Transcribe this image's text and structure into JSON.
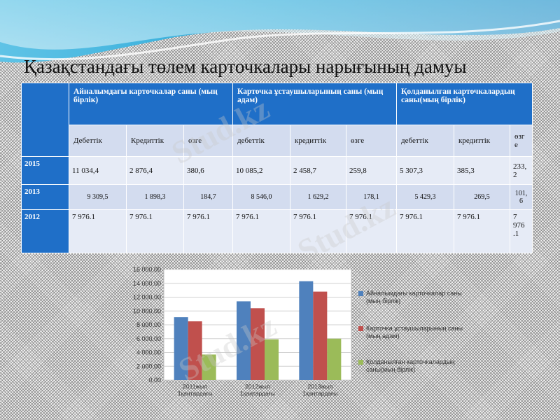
{
  "title": "Қазақстандағы төлем карточкалары нарығының дамуы",
  "watermark_text": "Stud.kz",
  "table": {
    "groups": [
      "Айналымдағы карточкалар саны (мың бірлік)",
      "Карточка ұстаушыларының саны (мың адам)",
      "Қолданылған карточкалардың саны(мың бірлік)"
    ],
    "subheaders": [
      "Дебеттік",
      "Кредиттік",
      "өзге",
      "дебеттік",
      "кредиттік",
      "өзге",
      "дебеттік",
      "кредиттік",
      "өзг е"
    ],
    "rows": [
      {
        "year": "2015",
        "values": [
          "11 034,4",
          "2 876,4",
          "380,6",
          "10 085,2",
          "2 458,7",
          "259,8",
          "5 307,3",
          "385,3",
          "233, 2"
        ]
      },
      {
        "year": "2013",
        "values": [
          "9 309,5",
          "1 898,3",
          "184,7",
          "8 546,0",
          "1 629,2",
          "178,1",
          "5 429,3",
          "269,5",
          "101, 6"
        ]
      },
      {
        "year": "2012",
        "values": [
          "7 976.1",
          "7 976.1",
          "7 976.1",
          "7 976.1",
          "7 976.1",
          "7 976.1",
          "7 976.1",
          "7 976.1",
          "7 976 .1"
        ]
      }
    ]
  },
  "colors": {
    "header_blue": "#1f6fc8",
    "series_blue": "#4f81bd",
    "series_red": "#c0504d",
    "series_green": "#9bbb59"
  },
  "chart_data": {
    "type": "bar",
    "categories": [
      "2011жыл 1қаңтардағы",
      "2012жыл 1қаңтардағы",
      "2013жыл 1қаңтардағы"
    ],
    "series": [
      {
        "name": "Айналымдағы карточкалар саны (мың бірлік)",
        "values": [
          9100,
          11400,
          14300
        ]
      },
      {
        "name": "Карточка ұстаушыларының саны (мың адам)",
        "values": [
          8500,
          10400,
          12800
        ]
      },
      {
        "name": "Қолданылған карточкалардың саны(мың бірлік)",
        "values": [
          3700,
          5900,
          6000
        ]
      }
    ],
    "y_ticks": [
      "0,00",
      "2 000,00",
      "4 000,00",
      "6 000,00",
      "8 000,00",
      "10 000,00",
      "12 000,00",
      "14 000,00",
      "16 000,00"
    ],
    "ylim": [
      0,
      16000
    ],
    "grid": true,
    "legend_position": "right"
  }
}
